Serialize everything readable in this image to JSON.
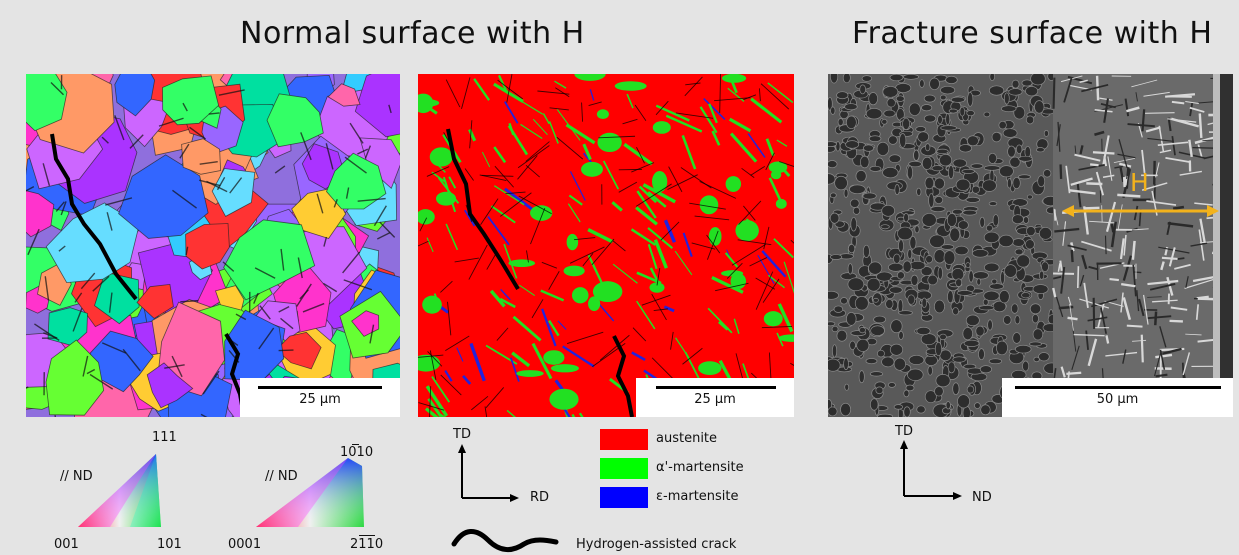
{
  "titles": {
    "normal_surface": "Normal surface with H",
    "fracture_surface": "Fracture surface with H"
  },
  "panels": {
    "ipf_map": {
      "scale": "25 µm"
    },
    "phase_map": {
      "scale": "25 µm"
    },
    "sem_image": {
      "scale": "50 µm",
      "marker": "H"
    }
  },
  "ipf_key_cubic": {
    "direction": "// ND",
    "corner_top": "111",
    "corner_left": "001",
    "corner_right": "101"
  },
  "ipf_key_hex": {
    "direction": "// ND",
    "corner_top": "1010",
    "corner_left": "0001",
    "corner_right": "2110"
  },
  "axes": {
    "maps": {
      "vertical": "TD",
      "horizontal": "RD"
    },
    "sem": {
      "vertical": "TD",
      "horizontal": "ND"
    }
  },
  "legend": {
    "items": [
      {
        "label": "austenite",
        "color": "#ff0000"
      },
      {
        "label": "α'-martensite",
        "color": "#00ff00"
      },
      {
        "label": "ε-martensite",
        "color": "#0000ff"
      }
    ],
    "crack_label": "Hydrogen-assisted crack"
  },
  "colors": {
    "background": "#e4e4e4",
    "marker": "#f2b21c"
  }
}
